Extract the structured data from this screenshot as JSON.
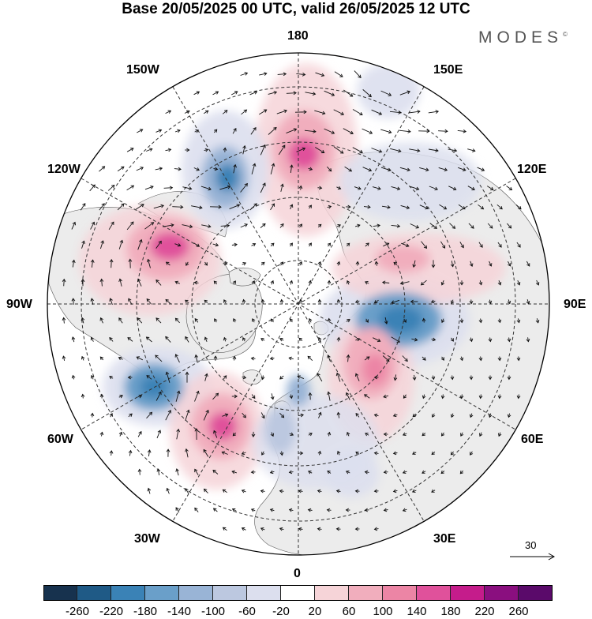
{
  "title": "Base 20/05/2025 00 UTC, valid 26/05/2025 12 UTC",
  "brand": "MODES",
  "brand_mark": "©",
  "longitude_labels": {
    "top": "180",
    "upper_left": "150W",
    "upper_right": "150E",
    "left_upper": "120W",
    "right_upper": "120E",
    "left": "90W",
    "right": "90E",
    "left_lower": "60W",
    "right_lower": "60E",
    "lower_left": "30W",
    "lower_right": "30E",
    "bottom": "0"
  },
  "reference_vector": {
    "value": "30"
  },
  "colorbar": {
    "colors": [
      "#17324e",
      "#1f5a86",
      "#3a82b6",
      "#6a9fc9",
      "#99b4d6",
      "#bcc8e0",
      "#dcdfee",
      "#ffffff",
      "#f6d4d8",
      "#f1aebd",
      "#ec85a5",
      "#e0519b",
      "#c51c8b",
      "#8a0f7f",
      "#5a0a6a"
    ],
    "tick_labels": [
      "-260",
      "-220",
      "-180",
      "-140",
      "-100",
      "-60",
      "-20",
      "20",
      "60",
      "100",
      "140",
      "180",
      "220",
      "260"
    ]
  },
  "anomaly_centers": [
    {
      "type": "positive",
      "level": "strong",
      "lon": 180,
      "lat": 55
    },
    {
      "type": "negative",
      "level": "moderate",
      "lon": -150,
      "lat": 45
    },
    {
      "type": "positive",
      "level": "strong",
      "lon": -112,
      "lat": 45
    },
    {
      "type": "negative",
      "level": "moderate",
      "lon": -55,
      "lat": 42
    },
    {
      "type": "positive",
      "level": "strong",
      "lon": -30,
      "lat": 42
    },
    {
      "type": "negative",
      "level": "strong",
      "lon": 88,
      "lat": 55
    },
    {
      "type": "positive",
      "level": "moderate",
      "lon": 65,
      "lat": 62
    },
    {
      "type": "positive",
      "level": "moderate",
      "lon": 120,
      "lat": 60
    },
    {
      "type": "negative",
      "level": "weak",
      "lon": 10,
      "lat": 72
    },
    {
      "type": "negative",
      "level": "weak",
      "lon": 150,
      "lat": 62
    },
    {
      "type": "negative",
      "level": "weak",
      "lon": 20,
      "lat": 48
    }
  ]
}
